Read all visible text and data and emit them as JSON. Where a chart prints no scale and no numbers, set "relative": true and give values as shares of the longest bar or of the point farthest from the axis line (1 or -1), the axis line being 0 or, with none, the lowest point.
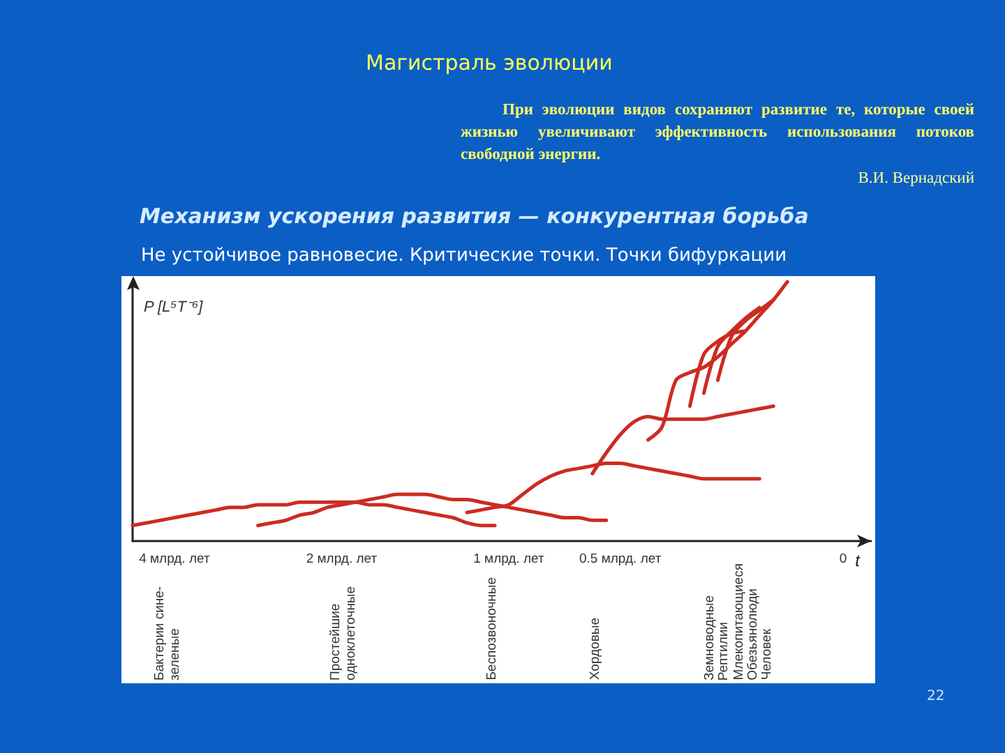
{
  "chart_data": {
    "type": "line",
    "relative": true,
    "title": "Магистраль эволюции",
    "subtitle": "Механизм ускорения развития — конкурентная борьба",
    "xlabel": "t",
    "ylabel": "P [L⁵T⁻⁶]",
    "marker": "none",
    "line_style": "solid",
    "categories": [
      null,
      null,
      null,
      "4 млрд. лет",
      null,
      null,
      null,
      null,
      null,
      null,
      null,
      null,
      null,
      null,
      null,
      "2 млрд. лет",
      null,
      null,
      null,
      null,
      null,
      null,
      null,
      null,
      null,
      null,
      null,
      "1 млрд. лет",
      null,
      null,
      null,
      null,
      null,
      null,
      null,
      "0.5 млрд. лет",
      null,
      null,
      null,
      null,
      null,
      null,
      null,
      null,
      null,
      null,
      null,
      null,
      null,
      null,
      null,
      "0",
      null,
      null
    ],
    "series": [
      {
        "color": "#cc2b22",
        "values": [
          0.06,
          0.07,
          0.08,
          0.09,
          0.1,
          0.11,
          0.12,
          0.13,
          0.13,
          0.14,
          0.14,
          0.14,
          0.15,
          0.15,
          0.15,
          0.15,
          0.15,
          0.14,
          0.14,
          0.13,
          0.12,
          0.11,
          0.1,
          0.09,
          0.07,
          0.06,
          0.06,
          null,
          null,
          null,
          null,
          null,
          null,
          null,
          null,
          null,
          null,
          null,
          null,
          null,
          null,
          null,
          null,
          null,
          null,
          null,
          null,
          null,
          null,
          null,
          null,
          null,
          null,
          null
        ]
      },
      {
        "color": "#cc2b22",
        "values": [
          null,
          null,
          null,
          null,
          null,
          null,
          null,
          null,
          null,
          0.06,
          0.07,
          0.08,
          0.1,
          0.11,
          0.13,
          0.14,
          0.15,
          0.16,
          0.17,
          0.18,
          0.18,
          0.18,
          0.17,
          0.16,
          0.16,
          0.15,
          0.14,
          0.13,
          0.12,
          0.11,
          0.1,
          0.09,
          0.09,
          0.08,
          0.08,
          null,
          null,
          null,
          null,
          null,
          null,
          null,
          null,
          null,
          null,
          null,
          null,
          null,
          null,
          null,
          null,
          null,
          null,
          null
        ]
      },
      {
        "color": "#cc2b22",
        "values": [
          null,
          null,
          null,
          null,
          null,
          null,
          null,
          null,
          null,
          null,
          null,
          null,
          null,
          null,
          null,
          null,
          null,
          null,
          null,
          null,
          null,
          null,
          null,
          null,
          0.11,
          0.12,
          0.13,
          0.14,
          0.18,
          0.22,
          0.25,
          0.27,
          0.28,
          0.29,
          0.3,
          0.3,
          0.29,
          0.28,
          0.27,
          0.26,
          0.25,
          0.24,
          0.24,
          0.24,
          0.24,
          0.24,
          null,
          null,
          null,
          null,
          null,
          null,
          null,
          null
        ]
      },
      {
        "color": "#cc2b22",
        "values": [
          null,
          null,
          null,
          null,
          null,
          null,
          null,
          null,
          null,
          null,
          null,
          null,
          null,
          null,
          null,
          null,
          null,
          null,
          null,
          null,
          null,
          null,
          null,
          null,
          null,
          null,
          null,
          null,
          null,
          null,
          null,
          null,
          null,
          0.26,
          0.34,
          0.41,
          0.46,
          0.48,
          0.47,
          0.47,
          0.47,
          0.47,
          0.48,
          0.49,
          0.5,
          0.51,
          0.52,
          null,
          null,
          null,
          null,
          null,
          null,
          null
        ]
      },
      {
        "color": "#cc2b22",
        "values": [
          null,
          null,
          null,
          null,
          null,
          null,
          null,
          null,
          null,
          null,
          null,
          null,
          null,
          null,
          null,
          null,
          null,
          null,
          null,
          null,
          null,
          null,
          null,
          null,
          null,
          null,
          null,
          null,
          null,
          null,
          null,
          null,
          null,
          null,
          null,
          null,
          null,
          0.39,
          0.44,
          0.62,
          0.65,
          0.67,
          0.71,
          0.76,
          0.81,
          0.87,
          0.93,
          1,
          null,
          null,
          null,
          null,
          null,
          null
        ]
      },
      {
        "color": "#cc2b22",
        "values": [
          null,
          null,
          null,
          null,
          null,
          null,
          null,
          null,
          null,
          null,
          null,
          null,
          null,
          null,
          null,
          null,
          null,
          null,
          null,
          null,
          null,
          null,
          null,
          null,
          null,
          null,
          null,
          null,
          null,
          null,
          null,
          null,
          null,
          null,
          null,
          null,
          null,
          null,
          null,
          null,
          0.52,
          0.72,
          0.77,
          0.8,
          0.81,
          null,
          null,
          null,
          null,
          null,
          null,
          null,
          null,
          null
        ]
      },
      {
        "color": "#cc2b22",
        "values": [
          null,
          null,
          null,
          null,
          null,
          null,
          null,
          null,
          null,
          null,
          null,
          null,
          null,
          null,
          null,
          null,
          null,
          null,
          null,
          null,
          null,
          null,
          null,
          null,
          null,
          null,
          null,
          null,
          null,
          null,
          null,
          null,
          null,
          null,
          null,
          null,
          null,
          null,
          null,
          null,
          null,
          0.57,
          0.75,
          0.81,
          0.86,
          0.9,
          null,
          null,
          null,
          null,
          null,
          null,
          null,
          null
        ]
      },
      {
        "color": "#cc2b22",
        "values": [
          null,
          null,
          null,
          null,
          null,
          null,
          null,
          null,
          null,
          null,
          null,
          null,
          null,
          null,
          null,
          null,
          null,
          null,
          null,
          null,
          null,
          null,
          null,
          null,
          null,
          null,
          null,
          null,
          null,
          null,
          null,
          null,
          null,
          null,
          null,
          null,
          null,
          null,
          null,
          null,
          null,
          null,
          0.62,
          0.79,
          0.85,
          0.89,
          0.93,
          null,
          null,
          null,
          null,
          null,
          null,
          null
        ]
      }
    ],
    "annotations": [
      "При эволюции видов сохраняют развитие те, которые своей жизнью увеличивают эффективность использования потоков свободной энергии.",
      "В.И. Вернадский",
      "Не устойчивое равновесие. Критические точки. Точки бифуркации",
      "Бактерии сине-зеленые",
      "Простейшие одноклеточные",
      "Беспозвоночные",
      "Хордовые",
      "Земноводные",
      "Рептилии",
      "Млекопитающиеся",
      "Обезьянолюди",
      "Человек",
      "22"
    ]
  }
}
